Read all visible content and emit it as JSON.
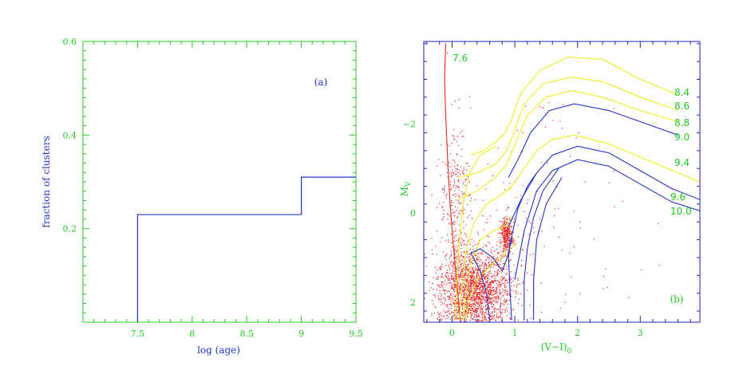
{
  "colors": {
    "frame_left": "#22cc22",
    "frame_right": "#2222bb",
    "histogram": "#2233cc",
    "labels_blue": "#2233cc",
    "labels_green": "#22cc22",
    "young_isochrone": "#ee2222",
    "yellow_isochrones": "#eeee22",
    "blue_isochrones": "#2233cc",
    "stars": "#ee2222"
  },
  "chart_data": [
    {
      "type": "histogram",
      "panel_label": "(a)",
      "xlabel": "log (age)",
      "ylabel": "fraction of clusters",
      "xlim": [
        7.0,
        9.5
      ],
      "ylim": [
        0.0,
        0.6
      ],
      "xticks": [
        "7.5",
        "8",
        "8.5",
        "9",
        "9.5"
      ],
      "yticks": [
        "0.2",
        "0.4",
        "0.6"
      ],
      "bins": [
        {
          "x0": 7.5,
          "x1": 9.0,
          "value": 0.23
        },
        {
          "x0": 9.0,
          "x1": 9.5,
          "value": 0.31
        }
      ]
    },
    {
      "type": "scatter",
      "panel_label": "(b)",
      "xlabel": "(V−I)",
      "xlabel_sub": "0",
      "ylabel": "M",
      "ylabel_sub": "V",
      "xlim": [
        -0.45,
        3.95
      ],
      "ylim": [
        2.45,
        -3.85
      ],
      "xticks": [
        "0",
        "1",
        "2",
        "3"
      ],
      "yticks": [
        "−2",
        "0",
        "2"
      ],
      "scatter_points_approx": 2600,
      "isochrones": [
        {
          "label": "7.6",
          "color": "red",
          "points": [
            [
              -0.1,
              -3.8
            ],
            [
              -0.12,
              -3.0
            ],
            [
              -0.1,
              -2.2
            ],
            [
              -0.07,
              -1.2
            ],
            [
              -0.03,
              -0.2
            ],
            [
              0.02,
              0.7
            ],
            [
              0.07,
              1.5
            ],
            [
              0.12,
              2.2
            ],
            [
              0.14,
              2.45
            ]
          ]
        },
        {
          "label": "8.4",
          "color": "yellow",
          "points": [
            [
              0.3,
              -1.3
            ],
            [
              0.5,
              -1.4
            ],
            [
              0.7,
              -1.6
            ],
            [
              0.85,
              -1.8
            ],
            [
              0.95,
              -2.1
            ],
            [
              1.1,
              -2.7
            ],
            [
              1.4,
              -3.2
            ],
            [
              1.85,
              -3.5
            ],
            [
              2.4,
              -3.45
            ],
            [
              3.0,
              -3.0
            ],
            [
              3.6,
              -2.65
            ]
          ]
        },
        {
          "label": "8.6",
          "color": "yellow",
          "points": [
            [
              0.1,
              -0.8
            ],
            [
              0.4,
              -0.9
            ],
            [
              0.7,
              -1.1
            ],
            [
              0.87,
              -1.4
            ],
            [
              0.97,
              -1.75
            ],
            [
              1.15,
              -2.45
            ],
            [
              1.45,
              -2.9
            ],
            [
              1.9,
              -3.05
            ],
            [
              2.4,
              -2.95
            ],
            [
              3.0,
              -2.6
            ],
            [
              3.6,
              -2.3
            ]
          ]
        },
        {
          "label": "8.8",
          "color": "yellow",
          "points": [
            [
              0.1,
              -0.3
            ],
            [
              0.4,
              -0.5
            ],
            [
              0.7,
              -0.8
            ],
            [
              0.87,
              -1.1
            ],
            [
              0.98,
              -1.45
            ],
            [
              1.2,
              -2.2
            ],
            [
              1.5,
              -2.6
            ],
            [
              1.9,
              -2.75
            ],
            [
              2.4,
              -2.6
            ],
            [
              3.0,
              -2.3
            ],
            [
              3.6,
              -2.05
            ]
          ]
        },
        {
          "label": "9.0",
          "color": "blue",
          "points": [
            [
              0.9,
              -0.8
            ],
            [
              1.05,
              -1.2
            ],
            [
              1.25,
              -1.8
            ],
            [
              1.55,
              -2.3
            ],
            [
              1.95,
              -2.45
            ],
            [
              2.5,
              -2.3
            ],
            [
              3.1,
              -2.0
            ],
            [
              3.6,
              -1.75
            ]
          ]
        },
        {
          "label": "9.4",
          "color": "yellow",
          "points": [
            [
              0.9,
              -0.5
            ],
            [
              1.1,
              -0.9
            ],
            [
              1.35,
              -1.4
            ],
            [
              1.6,
              -1.65
            ],
            [
              1.95,
              -1.75
            ],
            [
              2.5,
              -1.55
            ],
            [
              3.1,
              -1.2
            ],
            [
              3.6,
              -0.9
            ],
            [
              3.95,
              -0.7
            ]
          ]
        },
        {
          "label": "9.6",
          "color": "blue",
          "points": [
            [
              0.9,
              0.3
            ],
            [
              1.1,
              -0.3
            ],
            [
              1.35,
              -0.9
            ],
            [
              1.6,
              -1.3
            ],
            [
              2.0,
              -1.5
            ],
            [
              2.5,
              -1.35
            ],
            [
              3.0,
              -0.95
            ],
            [
              3.5,
              -0.55
            ],
            [
              3.95,
              -0.3
            ]
          ]
        },
        {
          "label": "10.0",
          "color": "blue",
          "points": [
            [
              1.0,
              1.5
            ],
            [
              1.15,
              0.4
            ],
            [
              1.35,
              -0.5
            ],
            [
              1.6,
              -0.95
            ],
            [
              2.0,
              -1.2
            ],
            [
              2.5,
              -1.05
            ],
            [
              3.0,
              -0.65
            ],
            [
              3.5,
              -0.25
            ],
            [
              3.95,
              -0.05
            ]
          ]
        }
      ]
    }
  ]
}
